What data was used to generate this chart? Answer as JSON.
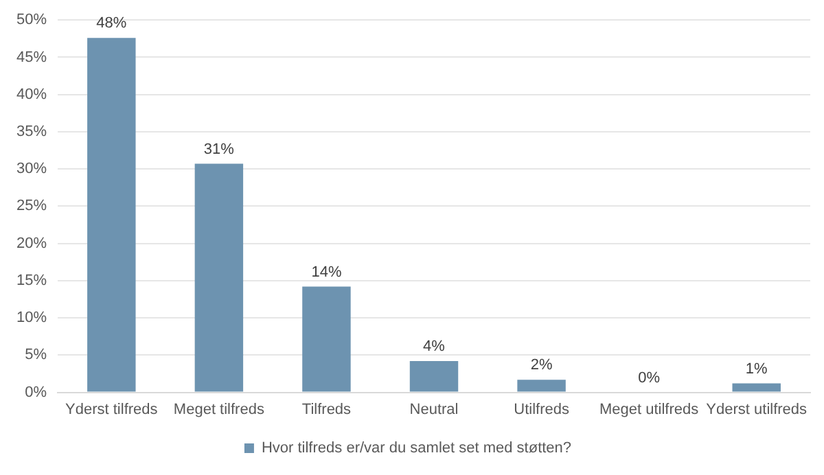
{
  "chart_data": {
    "type": "bar",
    "categories": [
      "Yderst tilfreds",
      "Meget tilfreds",
      "Tilfreds",
      "Neutral",
      "Utilfreds",
      "Meget utilfreds",
      "Yderst utilfreds"
    ],
    "series": [
      {
        "name": "Hvor tilfreds er/var du samlet set med støtten?",
        "color": "#6d93b0",
        "values": [
          47.6,
          30.7,
          14.2,
          4.2,
          1.7,
          0,
          1.2
        ],
        "value_labels": [
          "48%",
          "31%",
          "14%",
          "4%",
          "2%",
          "0%",
          "1%"
        ]
      }
    ],
    "ylim": [
      0,
      50
    ],
    "yticks": [
      {
        "value": 0,
        "label": "0%"
      },
      {
        "value": 5,
        "label": "5%"
      },
      {
        "value": 10,
        "label": "10%"
      },
      {
        "value": 15,
        "label": "15%"
      },
      {
        "value": 20,
        "label": "20%"
      },
      {
        "value": 25,
        "label": "25%"
      },
      {
        "value": 30,
        "label": "30%"
      },
      {
        "value": 35,
        "label": "35%"
      },
      {
        "value": 40,
        "label": "40%"
      },
      {
        "value": 45,
        "label": "45%"
      },
      {
        "value": 50,
        "label": "50%"
      }
    ],
    "grid": "y",
    "legend": "bottom"
  }
}
